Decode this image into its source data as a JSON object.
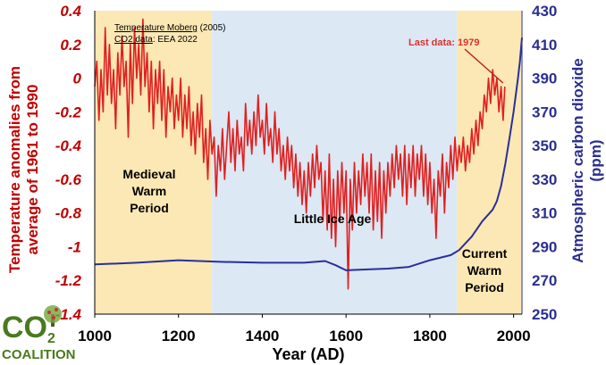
{
  "chart_data": {
    "type": "line",
    "x_axis": {
      "label": "Year (AD)",
      "ticks": [
        1000,
        1200,
        1400,
        1600,
        1800,
        2000
      ],
      "range": [
        1000,
        2020
      ]
    },
    "y_left": {
      "label_line1": "Temperature anomalies from",
      "label_line2": "average of 1961 to 1990",
      "ticks": [
        0.4,
        0.2,
        0,
        -0.2,
        -0.4,
        -0.6,
        -0.8,
        -1,
        -1.2,
        -1.4
      ],
      "tick_labels": [
        "0.4",
        "0.2",
        "0",
        "-0.2",
        "-0.4",
        "-0.6",
        "-0.8",
        "-1",
        "-1.2",
        "-1.4"
      ],
      "range": [
        -1.4,
        0.4
      ],
      "color": "#c00000"
    },
    "y_right": {
      "label_line1": "Atmospheric carbon dioxide",
      "label_line2": "(ppm)",
      "ticks": [
        250,
        270,
        290,
        310,
        330,
        350,
        370,
        390,
        410,
        430
      ],
      "range": [
        250,
        430
      ],
      "color": "#2a2f8f"
    },
    "sources": {
      "line1_link": "Temperature Moberg",
      "line1_rest": " (2005)",
      "line2_link": "CO2 data",
      "line2_rest": ": EEA 2022"
    },
    "periods": [
      {
        "name_lines": [
          "Medieval",
          "Warm",
          "Period"
        ],
        "start": 1000,
        "end": 1280,
        "color": "#fbe8b4"
      },
      {
        "name_lines": [
          "Little Ice Age"
        ],
        "start": 1280,
        "end": 1865,
        "color": "#dce8f3"
      },
      {
        "name_lines": [
          "Current",
          "Warm",
          "Period"
        ],
        "start": 1865,
        "end": 2020,
        "color": "#fbe8b4"
      }
    ],
    "annotation": {
      "text": "Last data: 1979",
      "year": 1979
    },
    "series": [
      {
        "axis": "left",
        "color": "#e02020",
        "points": [
          [
            1000,
            -0.05
          ],
          [
            1005,
            0.1
          ],
          [
            1010,
            -0.25
          ],
          [
            1015,
            0.05
          ],
          [
            1020,
            -0.2
          ],
          [
            1025,
            0.3
          ],
          [
            1030,
            -0.1
          ],
          [
            1035,
            0.2
          ],
          [
            1040,
            -0.15
          ],
          [
            1045,
            0.05
          ],
          [
            1050,
            -0.3
          ],
          [
            1055,
            0.15
          ],
          [
            1060,
            -0.1
          ],
          [
            1065,
            0.25
          ],
          [
            1070,
            -0.05
          ],
          [
            1075,
            0.1
          ],
          [
            1080,
            -0.35
          ],
          [
            1085,
            0.2
          ],
          [
            1090,
            -0.15
          ],
          [
            1095,
            0.3
          ],
          [
            1100,
            0.0
          ],
          [
            1105,
            0.2
          ],
          [
            1110,
            -0.1
          ],
          [
            1115,
            0.35
          ],
          [
            1120,
            -0.05
          ],
          [
            1125,
            0.15
          ],
          [
            1130,
            -0.2
          ],
          [
            1135,
            0.1
          ],
          [
            1140,
            -0.3
          ],
          [
            1145,
            0.05
          ],
          [
            1150,
            -0.15
          ],
          [
            1155,
            0.1
          ],
          [
            1160,
            -0.25
          ],
          [
            1165,
            0.05
          ],
          [
            1170,
            -0.35
          ],
          [
            1175,
            -0.05
          ],
          [
            1180,
            -0.2
          ],
          [
            1185,
            0.0
          ],
          [
            1190,
            -0.3
          ],
          [
            1195,
            -0.1
          ],
          [
            1200,
            -0.25
          ],
          [
            1205,
            0.0
          ],
          [
            1210,
            -0.35
          ],
          [
            1215,
            -0.1
          ],
          [
            1220,
            -0.3
          ],
          [
            1225,
            -0.05
          ],
          [
            1230,
            -0.4
          ],
          [
            1235,
            -0.2
          ],
          [
            1240,
            -0.45
          ],
          [
            1245,
            -0.15
          ],
          [
            1250,
            -0.35
          ],
          [
            1255,
            -0.1
          ],
          [
            1260,
            -0.5
          ],
          [
            1265,
            -0.3
          ],
          [
            1270,
            -0.6
          ],
          [
            1275,
            -0.25
          ],
          [
            1280,
            -0.45
          ],
          [
            1285,
            -0.35
          ],
          [
            1290,
            -0.7
          ],
          [
            1295,
            -0.4
          ],
          [
            1300,
            -0.55
          ],
          [
            1305,
            -0.3
          ],
          [
            1310,
            -0.6
          ],
          [
            1315,
            -0.4
          ],
          [
            1320,
            -0.2
          ],
          [
            1325,
            -0.5
          ],
          [
            1330,
            -0.3
          ],
          [
            1335,
            -0.55
          ],
          [
            1340,
            -0.25
          ],
          [
            1345,
            -0.45
          ],
          [
            1350,
            -0.35
          ],
          [
            1355,
            -0.55
          ],
          [
            1360,
            -0.15
          ],
          [
            1365,
            -0.4
          ],
          [
            1370,
            -0.25
          ],
          [
            1375,
            -0.45
          ],
          [
            1380,
            -0.2
          ],
          [
            1385,
            -0.4
          ],
          [
            1390,
            -0.1
          ],
          [
            1395,
            -0.35
          ],
          [
            1400,
            -0.25
          ],
          [
            1405,
            -0.45
          ],
          [
            1410,
            -0.15
          ],
          [
            1415,
            -0.4
          ],
          [
            1420,
            -0.3
          ],
          [
            1425,
            -0.5
          ],
          [
            1430,
            -0.2
          ],
          [
            1435,
            -0.45
          ],
          [
            1440,
            -0.3
          ],
          [
            1445,
            -0.55
          ],
          [
            1450,
            -0.4
          ],
          [
            1455,
            -0.6
          ],
          [
            1460,
            -0.35
          ],
          [
            1465,
            -0.55
          ],
          [
            1470,
            -0.4
          ],
          [
            1475,
            -0.65
          ],
          [
            1480,
            -0.45
          ],
          [
            1485,
            -0.7
          ],
          [
            1490,
            -0.5
          ],
          [
            1495,
            -0.75
          ],
          [
            1500,
            -0.55
          ],
          [
            1505,
            -0.8
          ],
          [
            1510,
            -0.5
          ],
          [
            1515,
            -0.7
          ],
          [
            1520,
            -0.45
          ],
          [
            1525,
            -0.65
          ],
          [
            1530,
            -0.4
          ],
          [
            1535,
            -0.6
          ],
          [
            1540,
            -0.5
          ],
          [
            1545,
            -0.85
          ],
          [
            1550,
            -0.55
          ],
          [
            1555,
            -0.9
          ],
          [
            1560,
            -0.45
          ],
          [
            1565,
            -0.95
          ],
          [
            1570,
            -0.6
          ],
          [
            1575,
            -1.0
          ],
          [
            1580,
            -0.55
          ],
          [
            1585,
            -0.85
          ],
          [
            1590,
            -0.5
          ],
          [
            1595,
            -0.8
          ],
          [
            1600,
            -0.55
          ],
          [
            1605,
            -1.25
          ],
          [
            1610,
            -0.6
          ],
          [
            1615,
            -0.9
          ],
          [
            1620,
            -0.5
          ],
          [
            1625,
            -0.8
          ],
          [
            1630,
            -0.55
          ],
          [
            1635,
            -0.75
          ],
          [
            1640,
            -0.45
          ],
          [
            1645,
            -0.7
          ],
          [
            1650,
            -0.5
          ],
          [
            1655,
            -0.8
          ],
          [
            1660,
            -0.45
          ],
          [
            1665,
            -0.9
          ],
          [
            1670,
            -0.55
          ],
          [
            1675,
            -0.85
          ],
          [
            1680,
            -0.5
          ],
          [
            1685,
            -0.95
          ],
          [
            1690,
            -0.55
          ],
          [
            1695,
            -0.8
          ],
          [
            1700,
            -0.5
          ],
          [
            1705,
            -0.7
          ],
          [
            1710,
            -0.45
          ],
          [
            1715,
            -0.65
          ],
          [
            1720,
            -0.4
          ],
          [
            1725,
            -0.6
          ],
          [
            1730,
            -0.45
          ],
          [
            1735,
            -0.7
          ],
          [
            1740,
            -0.4
          ],
          [
            1745,
            -0.75
          ],
          [
            1750,
            -0.45
          ],
          [
            1755,
            -0.65
          ],
          [
            1760,
            -0.4
          ],
          [
            1765,
            -0.7
          ],
          [
            1770,
            -0.45
          ],
          [
            1775,
            -0.6
          ],
          [
            1780,
            -0.4
          ],
          [
            1785,
            -0.7
          ],
          [
            1790,
            -0.45
          ],
          [
            1795,
            -0.75
          ],
          [
            1800,
            -0.5
          ],
          [
            1805,
            -0.8
          ],
          [
            1810,
            -0.6
          ],
          [
            1815,
            -0.95
          ],
          [
            1820,
            -0.55
          ],
          [
            1825,
            -0.7
          ],
          [
            1830,
            -0.45
          ],
          [
            1835,
            -0.8
          ],
          [
            1840,
            -0.5
          ],
          [
            1845,
            -0.65
          ],
          [
            1850,
            -0.4
          ],
          [
            1855,
            -0.6
          ],
          [
            1860,
            -0.35
          ],
          [
            1865,
            -0.55
          ],
          [
            1870,
            -0.4
          ],
          [
            1875,
            -0.5
          ],
          [
            1880,
            -0.35
          ],
          [
            1885,
            -0.55
          ],
          [
            1890,
            -0.4
          ],
          [
            1895,
            -0.5
          ],
          [
            1900,
            -0.3
          ],
          [
            1905,
            -0.45
          ],
          [
            1910,
            -0.25
          ],
          [
            1915,
            -0.4
          ],
          [
            1920,
            -0.2
          ],
          [
            1925,
            -0.3
          ],
          [
            1930,
            -0.1
          ],
          [
            1935,
            -0.2
          ],
          [
            1940,
            0.0
          ],
          [
            1945,
            -0.15
          ],
          [
            1950,
            0.05
          ],
          [
            1955,
            -0.1
          ],
          [
            1960,
            0.0
          ],
          [
            1965,
            -0.2
          ],
          [
            1970,
            -0.05
          ],
          [
            1975,
            -0.25
          ],
          [
            1979,
            -0.05
          ]
        ]
      },
      {
        "axis": "right",
        "color": "#2a2f9a",
        "points": [
          [
            1000,
            279.5
          ],
          [
            1100,
            280.5
          ],
          [
            1200,
            282
          ],
          [
            1300,
            281
          ],
          [
            1400,
            280.5
          ],
          [
            1500,
            280.5
          ],
          [
            1550,
            281.5
          ],
          [
            1575,
            279
          ],
          [
            1600,
            276
          ],
          [
            1650,
            276.5
          ],
          [
            1700,
            277
          ],
          [
            1750,
            278
          ],
          [
            1800,
            282
          ],
          [
            1850,
            285
          ],
          [
            1870,
            288
          ],
          [
            1900,
            296
          ],
          [
            1925,
            305
          ],
          [
            1950,
            312
          ],
          [
            1960,
            317
          ],
          [
            1970,
            326
          ],
          [
            1980,
            339
          ],
          [
            1990,
            354
          ],
          [
            2000,
            370
          ],
          [
            2010,
            389
          ],
          [
            2015,
            400
          ],
          [
            2020,
            414
          ]
        ]
      }
    ]
  },
  "branding": {
    "logo_co": "CO",
    "logo_sub": "2",
    "logo_name": "COALITION"
  }
}
